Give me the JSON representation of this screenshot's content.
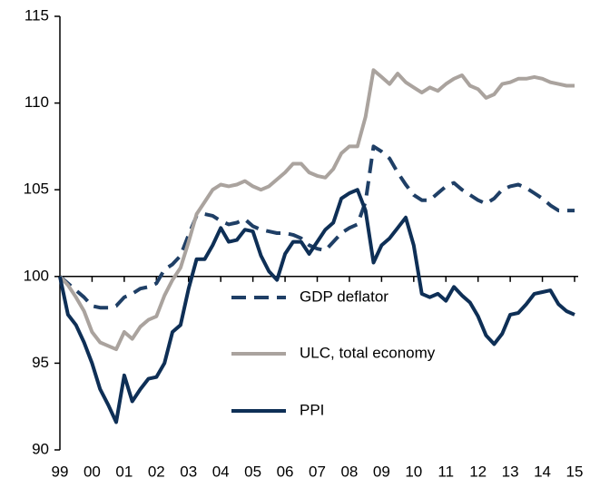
{
  "chart_data": {
    "type": "line",
    "categories": [
      "99",
      null,
      null,
      null,
      "00",
      null,
      null,
      null,
      "01",
      null,
      null,
      null,
      "02",
      null,
      null,
      null,
      "03",
      null,
      null,
      null,
      "04",
      null,
      null,
      null,
      "05",
      null,
      null,
      null,
      "06",
      null,
      null,
      null,
      "07",
      null,
      null,
      null,
      "08",
      null,
      null,
      null,
      "09",
      null,
      null,
      null,
      "10",
      null,
      null,
      null,
      "11",
      null,
      null,
      null,
      "12",
      null,
      null,
      null,
      "13",
      null,
      null,
      null,
      "14",
      null,
      null,
      null,
      "15"
    ],
    "series": [
      {
        "name": "GDP deflator",
        "color": "#1f3f66",
        "dash": true,
        "values": [
          100,
          99.6,
          99.2,
          98.8,
          98.3,
          98.2,
          98.2,
          98.3,
          98.8,
          99.0,
          99.3,
          99.4,
          99.6,
          100.4,
          100.7,
          101.2,
          102.4,
          103.5,
          103.6,
          103.5,
          103.2,
          103.0,
          103.1,
          103.3,
          102.9,
          102.7,
          102.6,
          102.5,
          102.5,
          102.4,
          102.2,
          101.8,
          101.6,
          101.5,
          102.0,
          102.5,
          102.8,
          103.0,
          104.3,
          107.5,
          107.2,
          106.8,
          106.0,
          105.3,
          104.7,
          104.4,
          104.4,
          104.8,
          105.2,
          105.4,
          105.0,
          104.7,
          104.4,
          104.2,
          104.5,
          105.0,
          105.2,
          105.3,
          105.1,
          104.8,
          104.5,
          104.1,
          103.8,
          103.8,
          103.8
        ]
      },
      {
        "name": "ULC, total economy",
        "color": "#aaa39e",
        "dash": false,
        "values": [
          100,
          99.5,
          98.8,
          98.0,
          96.8,
          96.2,
          96.0,
          95.8,
          96.8,
          96.4,
          97.1,
          97.5,
          97.7,
          98.9,
          99.8,
          100.5,
          102.0,
          103.6,
          104.3,
          105.0,
          105.3,
          105.2,
          105.3,
          105.5,
          105.2,
          105.0,
          105.2,
          105.6,
          106.0,
          106.5,
          106.5,
          106.0,
          105.8,
          105.7,
          106.2,
          107.1,
          107.5,
          107.5,
          109.2,
          111.9,
          111.5,
          111.1,
          111.7,
          111.2,
          110.9,
          110.6,
          110.9,
          110.7,
          111.1,
          111.4,
          111.6,
          111.0,
          110.8,
          110.3,
          110.5,
          111.1,
          111.2,
          111.4,
          111.4,
          111.5,
          111.4,
          111.2,
          111.1,
          111.0,
          111.0
        ]
      },
      {
        "name": "PPI",
        "color": "#0e2f56",
        "dash": false,
        "values": [
          100,
          97.8,
          97.2,
          96.2,
          95.0,
          93.5,
          92.6,
          91.6,
          94.3,
          92.8,
          93.5,
          94.1,
          94.2,
          95.0,
          96.8,
          97.2,
          99.3,
          101.0,
          101.0,
          101.8,
          102.8,
          102.0,
          102.1,
          102.7,
          102.6,
          101.2,
          100.3,
          99.8,
          101.3,
          102.0,
          102.0,
          101.3,
          102.0,
          102.7,
          103.1,
          104.5,
          104.8,
          105.0,
          103.8,
          100.8,
          101.8,
          102.2,
          102.8,
          103.4,
          101.8,
          99.0,
          98.8,
          99.0,
          98.6,
          99.4,
          98.9,
          98.5,
          97.7,
          96.6,
          96.1,
          96.7,
          97.8,
          97.9,
          98.4,
          99.0,
          99.1,
          99.2,
          98.4,
          98.0,
          97.8
        ]
      }
    ],
    "ylim": [
      90,
      115
    ],
    "yticks": [
      90,
      95,
      100,
      105,
      110,
      115
    ],
    "baseline": 100
  }
}
